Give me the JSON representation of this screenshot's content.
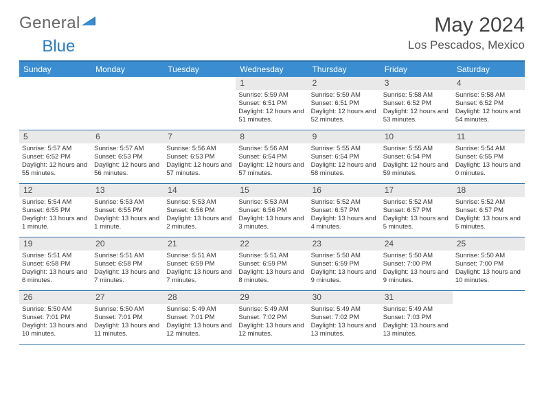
{
  "brand": {
    "part1": "General",
    "part2": "Blue"
  },
  "title": "May 2024",
  "location": "Los Pescados, Mexico",
  "colors": {
    "header_bg": "#3a8dd0",
    "border": "#2a6fa8",
    "daynum_bg": "#e9e9e9",
    "text": "#333333",
    "brand_blue": "#2a7bbf"
  },
  "day_names": [
    "Sunday",
    "Monday",
    "Tuesday",
    "Wednesday",
    "Thursday",
    "Friday",
    "Saturday"
  ],
  "weeks": [
    [
      {
        "n": "",
        "sr": "",
        "ss": "",
        "dl": ""
      },
      {
        "n": "",
        "sr": "",
        "ss": "",
        "dl": ""
      },
      {
        "n": "",
        "sr": "",
        "ss": "",
        "dl": ""
      },
      {
        "n": "1",
        "sr": "Sunrise: 5:59 AM",
        "ss": "Sunset: 6:51 PM",
        "dl": "Daylight: 12 hours and 51 minutes."
      },
      {
        "n": "2",
        "sr": "Sunrise: 5:59 AM",
        "ss": "Sunset: 6:51 PM",
        "dl": "Daylight: 12 hours and 52 minutes."
      },
      {
        "n": "3",
        "sr": "Sunrise: 5:58 AM",
        "ss": "Sunset: 6:52 PM",
        "dl": "Daylight: 12 hours and 53 minutes."
      },
      {
        "n": "4",
        "sr": "Sunrise: 5:58 AM",
        "ss": "Sunset: 6:52 PM",
        "dl": "Daylight: 12 hours and 54 minutes."
      }
    ],
    [
      {
        "n": "5",
        "sr": "Sunrise: 5:57 AM",
        "ss": "Sunset: 6:52 PM",
        "dl": "Daylight: 12 hours and 55 minutes."
      },
      {
        "n": "6",
        "sr": "Sunrise: 5:57 AM",
        "ss": "Sunset: 6:53 PM",
        "dl": "Daylight: 12 hours and 56 minutes."
      },
      {
        "n": "7",
        "sr": "Sunrise: 5:56 AM",
        "ss": "Sunset: 6:53 PM",
        "dl": "Daylight: 12 hours and 57 minutes."
      },
      {
        "n": "8",
        "sr": "Sunrise: 5:56 AM",
        "ss": "Sunset: 6:54 PM",
        "dl": "Daylight: 12 hours and 57 minutes."
      },
      {
        "n": "9",
        "sr": "Sunrise: 5:55 AM",
        "ss": "Sunset: 6:54 PM",
        "dl": "Daylight: 12 hours and 58 minutes."
      },
      {
        "n": "10",
        "sr": "Sunrise: 5:55 AM",
        "ss": "Sunset: 6:54 PM",
        "dl": "Daylight: 12 hours and 59 minutes."
      },
      {
        "n": "11",
        "sr": "Sunrise: 5:54 AM",
        "ss": "Sunset: 6:55 PM",
        "dl": "Daylight: 13 hours and 0 minutes."
      }
    ],
    [
      {
        "n": "12",
        "sr": "Sunrise: 5:54 AM",
        "ss": "Sunset: 6:55 PM",
        "dl": "Daylight: 13 hours and 1 minute."
      },
      {
        "n": "13",
        "sr": "Sunrise: 5:53 AM",
        "ss": "Sunset: 6:55 PM",
        "dl": "Daylight: 13 hours and 1 minute."
      },
      {
        "n": "14",
        "sr": "Sunrise: 5:53 AM",
        "ss": "Sunset: 6:56 PM",
        "dl": "Daylight: 13 hours and 2 minutes."
      },
      {
        "n": "15",
        "sr": "Sunrise: 5:53 AM",
        "ss": "Sunset: 6:56 PM",
        "dl": "Daylight: 13 hours and 3 minutes."
      },
      {
        "n": "16",
        "sr": "Sunrise: 5:52 AM",
        "ss": "Sunset: 6:57 PM",
        "dl": "Daylight: 13 hours and 4 minutes."
      },
      {
        "n": "17",
        "sr": "Sunrise: 5:52 AM",
        "ss": "Sunset: 6:57 PM",
        "dl": "Daylight: 13 hours and 5 minutes."
      },
      {
        "n": "18",
        "sr": "Sunrise: 5:52 AM",
        "ss": "Sunset: 6:57 PM",
        "dl": "Daylight: 13 hours and 5 minutes."
      }
    ],
    [
      {
        "n": "19",
        "sr": "Sunrise: 5:51 AM",
        "ss": "Sunset: 6:58 PM",
        "dl": "Daylight: 13 hours and 6 minutes."
      },
      {
        "n": "20",
        "sr": "Sunrise: 5:51 AM",
        "ss": "Sunset: 6:58 PM",
        "dl": "Daylight: 13 hours and 7 minutes."
      },
      {
        "n": "21",
        "sr": "Sunrise: 5:51 AM",
        "ss": "Sunset: 6:59 PM",
        "dl": "Daylight: 13 hours and 7 minutes."
      },
      {
        "n": "22",
        "sr": "Sunrise: 5:51 AM",
        "ss": "Sunset: 6:59 PM",
        "dl": "Daylight: 13 hours and 8 minutes."
      },
      {
        "n": "23",
        "sr": "Sunrise: 5:50 AM",
        "ss": "Sunset: 6:59 PM",
        "dl": "Daylight: 13 hours and 9 minutes."
      },
      {
        "n": "24",
        "sr": "Sunrise: 5:50 AM",
        "ss": "Sunset: 7:00 PM",
        "dl": "Daylight: 13 hours and 9 minutes."
      },
      {
        "n": "25",
        "sr": "Sunrise: 5:50 AM",
        "ss": "Sunset: 7:00 PM",
        "dl": "Daylight: 13 hours and 10 minutes."
      }
    ],
    [
      {
        "n": "26",
        "sr": "Sunrise: 5:50 AM",
        "ss": "Sunset: 7:01 PM",
        "dl": "Daylight: 13 hours and 10 minutes."
      },
      {
        "n": "27",
        "sr": "Sunrise: 5:50 AM",
        "ss": "Sunset: 7:01 PM",
        "dl": "Daylight: 13 hours and 11 minutes."
      },
      {
        "n": "28",
        "sr": "Sunrise: 5:49 AM",
        "ss": "Sunset: 7:01 PM",
        "dl": "Daylight: 13 hours and 12 minutes."
      },
      {
        "n": "29",
        "sr": "Sunrise: 5:49 AM",
        "ss": "Sunset: 7:02 PM",
        "dl": "Daylight: 13 hours and 12 minutes."
      },
      {
        "n": "30",
        "sr": "Sunrise: 5:49 AM",
        "ss": "Sunset: 7:02 PM",
        "dl": "Daylight: 13 hours and 13 minutes."
      },
      {
        "n": "31",
        "sr": "Sunrise: 5:49 AM",
        "ss": "Sunset: 7:03 PM",
        "dl": "Daylight: 13 hours and 13 minutes."
      },
      {
        "n": "",
        "sr": "",
        "ss": "",
        "dl": ""
      }
    ]
  ]
}
